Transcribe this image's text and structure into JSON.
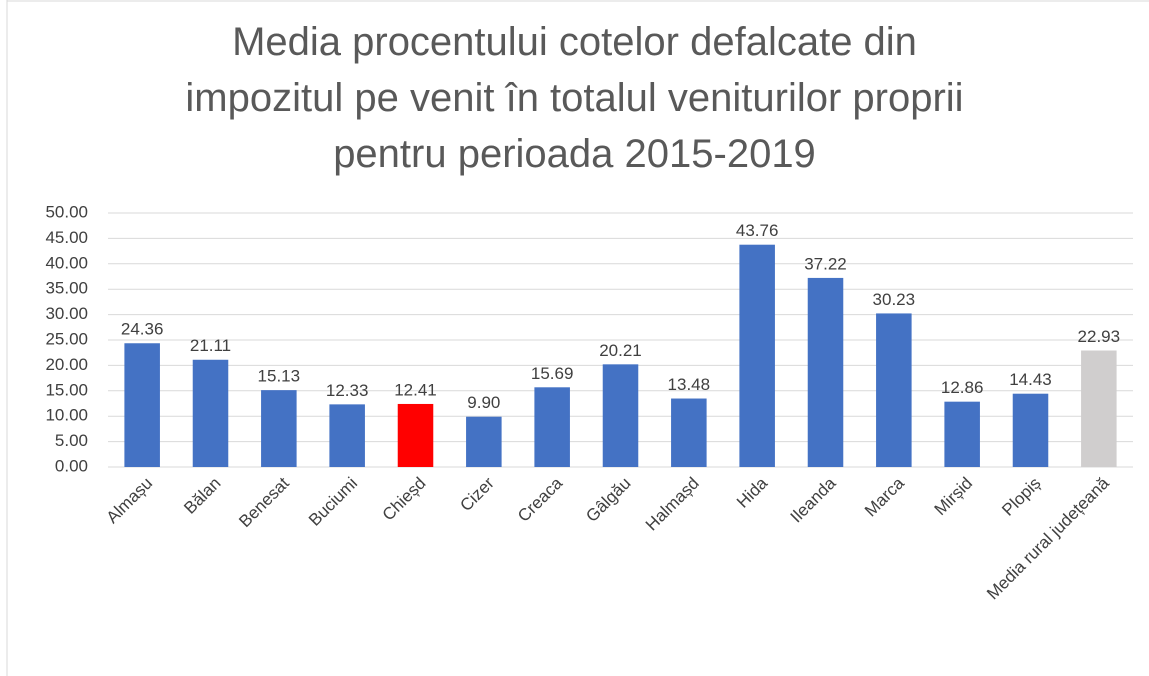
{
  "chart_data": {
    "type": "bar",
    "title": "Media procentului cotelor defalcate din\nimpozitul pe venit în totalul veniturilor proprii\npentru perioada 2015-2019",
    "categories": [
      "Almașu",
      "Bălan",
      "Benesat",
      "Buciumi",
      "Chieșd",
      "Cizer",
      "Creaca",
      "Gâlgău",
      "Halmașd",
      "Hida",
      "Ileanda",
      "Marca",
      "Mirșid",
      "Plopiș",
      "Media rural județeană"
    ],
    "values": [
      24.36,
      21.11,
      15.13,
      12.33,
      12.41,
      9.9,
      15.69,
      20.21,
      13.48,
      43.76,
      37.22,
      30.23,
      12.86,
      14.43,
      22.93
    ],
    "value_labels": [
      "24.36",
      "21.11",
      "15.13",
      "12.33",
      "12.41",
      "9.90",
      "15.69",
      "20.21",
      "13.48",
      "43.76",
      "37.22",
      "30.23",
      "12.86",
      "14.43",
      "22.93"
    ],
    "colors": [
      "#4472c4",
      "#4472c4",
      "#4472c4",
      "#4472c4",
      "#ff0000",
      "#4472c4",
      "#4472c4",
      "#4472c4",
      "#4472c4",
      "#4472c4",
      "#4472c4",
      "#4472c4",
      "#4472c4",
      "#4472c4",
      "#d0cece"
    ],
    "ylim": [
      0,
      50
    ],
    "yticks": [
      {
        "value": 0,
        "label": "0.00"
      },
      {
        "value": 5,
        "label": "5.00"
      },
      {
        "value": 10,
        "label": "10.00"
      },
      {
        "value": 15,
        "label": "15.00"
      },
      {
        "value": 20,
        "label": "20.00"
      },
      {
        "value": 25,
        "label": "25.00"
      },
      {
        "value": 30,
        "label": "30.00"
      },
      {
        "value": 35,
        "label": "35.00"
      },
      {
        "value": 40,
        "label": "40.00"
      },
      {
        "value": 45,
        "label": "45.00"
      },
      {
        "value": 50,
        "label": "50.00"
      }
    ],
    "grid": true
  }
}
